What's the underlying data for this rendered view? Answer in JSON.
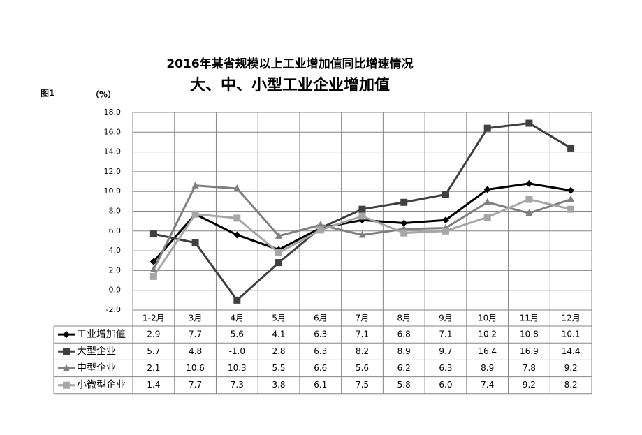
{
  "chart_data": {
    "type": "line",
    "title": "2016年某省规模以上工业增加值同比增速情况",
    "subtitle": "大、中、小型工业企业增加值",
    "figure_label": "图1",
    "y_label": "（%）",
    "categories": [
      "1-2月",
      "3月",
      "4月",
      "5月",
      "6月",
      "7月",
      "8月",
      "9月",
      "10月",
      "11月",
      "12月"
    ],
    "series": [
      {
        "name": "工业增加值",
        "color": "#000000",
        "marker": "diamond",
        "values": [
          2.9,
          7.7,
          5.6,
          4.1,
          6.3,
          7.1,
          6.8,
          7.1,
          10.2,
          10.8,
          10.1
        ],
        "value_labels": [
          "2.9",
          "7.7",
          "5.6",
          "4.1",
          "6.3",
          "7.1",
          "6.8",
          "7.1",
          "10.2",
          "10.8",
          "10.1"
        ]
      },
      {
        "name": "大型企业",
        "color": "#404040",
        "marker": "square",
        "values": [
          5.7,
          4.8,
          -1.0,
          2.8,
          6.3,
          8.2,
          8.9,
          9.7,
          16.4,
          16.9,
          14.4
        ],
        "value_labels": [
          "5.7",
          "4.8",
          "-1.0",
          "2.8",
          "6.3",
          "8.2",
          "8.9",
          "9.7",
          "16.4",
          "16.9",
          "14.4"
        ]
      },
      {
        "name": "中型企业",
        "color": "#7f7f7f",
        "marker": "triangle",
        "values": [
          2.1,
          10.6,
          10.3,
          5.5,
          6.6,
          5.6,
          6.2,
          6.3,
          8.9,
          7.8,
          9.2
        ],
        "value_labels": [
          "2.1",
          "10.6",
          "10.3",
          "5.5",
          "6.6",
          "5.6",
          "6.2",
          "6.3",
          "8.9",
          "7.8",
          "9.2"
        ]
      },
      {
        "name": "小微型企业",
        "color": "#a6a6a6",
        "marker": "square",
        "values": [
          1.4,
          7.7,
          7.3,
          3.8,
          6.1,
          7.5,
          5.8,
          6.0,
          7.4,
          9.2,
          8.2
        ],
        "value_labels": [
          "1.4",
          "7.7",
          "7.3",
          "3.8",
          "6.1",
          "7.5",
          "5.8",
          "6.0",
          "7.4",
          "9.2",
          "8.2"
        ]
      }
    ],
    "ylim": [
      -2,
      18
    ],
    "yticks": [
      {
        "value": -2,
        "label": "-2.0"
      },
      {
        "value": 0,
        "label": "0.0"
      },
      {
        "value": 2,
        "label": "2.0"
      },
      {
        "value": 4,
        "label": "4.0"
      },
      {
        "value": 6,
        "label": "6.0"
      },
      {
        "value": 8,
        "label": "8.0"
      },
      {
        "value": 10,
        "label": "10.0"
      },
      {
        "value": 12,
        "label": "12.0"
      },
      {
        "value": 14,
        "label": "14.0"
      },
      {
        "value": 16,
        "label": "16.0"
      },
      {
        "value": 18,
        "label": "18.0"
      }
    ],
    "grid": true
  }
}
